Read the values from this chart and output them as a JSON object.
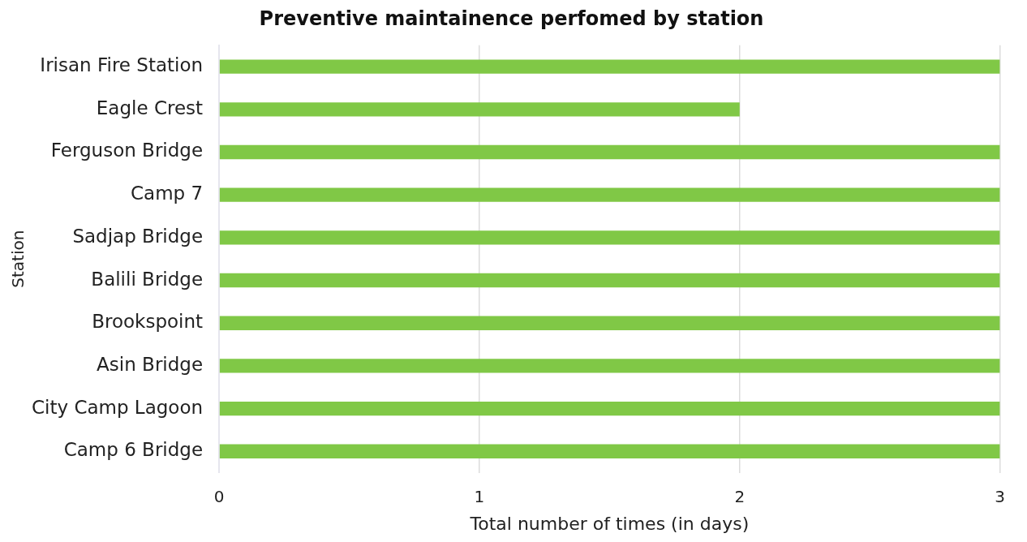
{
  "chart_data": {
    "type": "bar",
    "orientation": "horizontal",
    "title": "Preventive maintainence perfomed by station",
    "xlabel": "Total number of times (in days)",
    "ylabel": "Station",
    "categories": [
      "Irisan Fire Station",
      "Eagle Crest",
      "Ferguson Bridge",
      "Camp 7",
      "Sadjap Bridge",
      "Balili Bridge",
      "Brookspoint",
      "Asin Bridge",
      "City Camp Lagoon",
      "Camp 6 Bridge"
    ],
    "values": [
      3,
      2,
      3,
      3,
      3,
      3,
      3,
      3,
      3,
      3
    ],
    "color": "#80c846",
    "xlim": [
      0,
      3
    ],
    "xticks": [
      0,
      1,
      2,
      3
    ],
    "grid": "x",
    "legend": false
  }
}
